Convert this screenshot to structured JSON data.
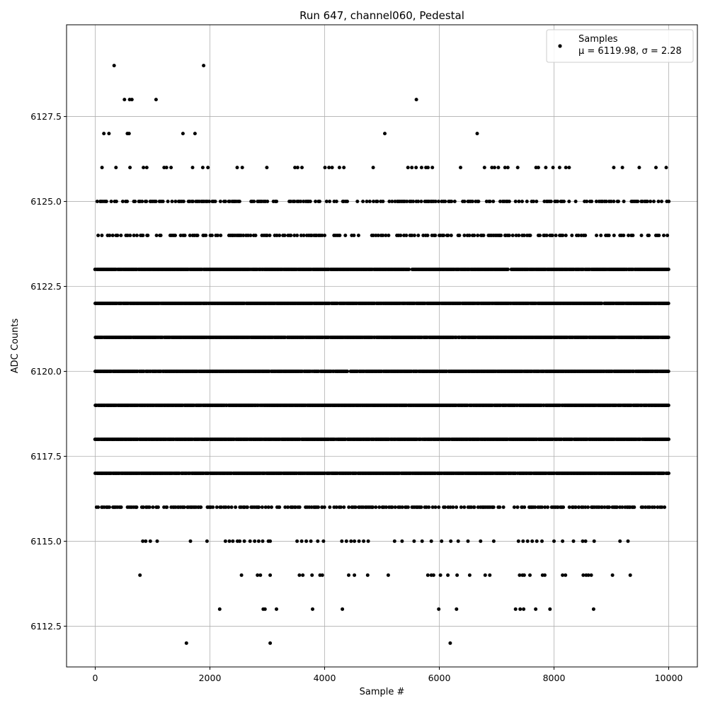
{
  "chart_data": {
    "type": "scatter",
    "title": "Run 647, channel060, Pedestal",
    "xlabel": "Sample #",
    "ylabel": "ADC Counts",
    "xlim": [
      -500,
      10500
    ],
    "ylim": [
      6111.3,
      6130.2
    ],
    "xticks": [
      0,
      2000,
      4000,
      6000,
      8000,
      10000
    ],
    "xtick_labels": [
      "0",
      "2000",
      "4000",
      "6000",
      "8000",
      "10000"
    ],
    "yticks": [
      6112.5,
      6115.0,
      6117.5,
      6120.0,
      6122.5,
      6125.0,
      6127.5
    ],
    "ytick_labels": [
      "6112.5",
      "6115.0",
      "6117.5",
      "6120.0",
      "6122.5",
      "6125.0",
      "6127.5"
    ],
    "grid": true,
    "legend_position": "top-right",
    "legend": {
      "series_name": "Samples",
      "stats_label": "μ = 6119.98, σ = 2.28"
    },
    "marker_color": "#000000",
    "n_samples": 10000,
    "series": [
      {
        "name": "Samples",
        "levels": [
          6112,
          6113,
          6114,
          6115,
          6116,
          6117,
          6118,
          6119,
          6120,
          6121,
          6122,
          6123,
          6124,
          6125,
          6126,
          6127,
          6128,
          6129
        ],
        "points": [
          [
            330,
            6129
          ],
          [
            1890,
            6129
          ],
          [
            510,
            6128
          ],
          [
            600,
            6128
          ],
          [
            640,
            6128
          ],
          [
            1060,
            6128
          ],
          [
            5600,
            6128
          ],
          [
            150,
            6127
          ],
          [
            240,
            6127
          ],
          [
            560,
            6127
          ],
          [
            590,
            6127
          ],
          [
            1530,
            6127
          ],
          [
            1740,
            6127
          ],
          [
            5050,
            6127
          ],
          [
            6660,
            6127
          ],
          [
            1590,
            6112
          ],
          [
            3050,
            6112
          ],
          [
            6190,
            6112
          ],
          [
            2170,
            6113
          ],
          [
            2930,
            6113
          ],
          [
            2960,
            6113
          ],
          [
            3160,
            6113
          ],
          [
            3790,
            6113
          ],
          [
            4310,
            6113
          ],
          [
            5990,
            6113
          ],
          [
            6300,
            6113
          ],
          [
            7330,
            6113
          ],
          [
            7410,
            6113
          ],
          [
            7470,
            6113
          ],
          [
            7680,
            6113
          ],
          [
            7930,
            6113
          ],
          [
            8690,
            6113
          ],
          [
            780,
            6114
          ],
          [
            2550,
            6114
          ],
          [
            2830,
            6114
          ],
          [
            2880,
            6114
          ],
          [
            3050,
            6114
          ],
          [
            3560,
            6114
          ],
          [
            3620,
            6114
          ],
          [
            3780,
            6114
          ],
          [
            3920,
            6114
          ],
          [
            3960,
            6114
          ],
          [
            4420,
            6114
          ],
          [
            4520,
            6114
          ],
          [
            4750,
            6114
          ],
          [
            5110,
            6114
          ],
          [
            5800,
            6114
          ],
          [
            5860,
            6114
          ],
          [
            5900,
            6114
          ],
          [
            6020,
            6114
          ],
          [
            6150,
            6114
          ],
          [
            6310,
            6114
          ],
          [
            6530,
            6114
          ],
          [
            6800,
            6114
          ],
          [
            6880,
            6114
          ],
          [
            7400,
            6114
          ],
          [
            7450,
            6114
          ],
          [
            7480,
            6114
          ],
          [
            7580,
            6114
          ],
          [
            7800,
            6114
          ],
          [
            7840,
            6114
          ],
          [
            8150,
            6114
          ],
          [
            8200,
            6114
          ],
          [
            8510,
            6114
          ],
          [
            8560,
            6114
          ],
          [
            8600,
            6114
          ],
          [
            8650,
            6114
          ],
          [
            9020,
            6114
          ],
          [
            9330,
            6114
          ],
          [
            830,
            6115
          ],
          [
            880,
            6115
          ],
          [
            960,
            6115
          ],
          [
            1080,
            6115
          ],
          [
            1660,
            6115
          ],
          [
            1950,
            6115
          ],
          [
            2270,
            6115
          ],
          [
            2340,
            6115
          ],
          [
            2400,
            6115
          ],
          [
            2480,
            6115
          ],
          [
            2520,
            6115
          ],
          [
            2600,
            6115
          ],
          [
            2700,
            6115
          ],
          [
            2780,
            6115
          ],
          [
            2850,
            6115
          ],
          [
            2920,
            6115
          ],
          [
            3020,
            6115
          ],
          [
            3050,
            6115
          ],
          [
            3520,
            6115
          ],
          [
            3600,
            6115
          ],
          [
            3680,
            6115
          ],
          [
            3760,
            6115
          ],
          [
            3880,
            6115
          ],
          [
            3980,
            6115
          ],
          [
            4300,
            6115
          ],
          [
            4380,
            6115
          ],
          [
            4460,
            6115
          ],
          [
            4520,
            6115
          ],
          [
            4600,
            6115
          ],
          [
            4680,
            6115
          ],
          [
            4760,
            6115
          ],
          [
            5220,
            6115
          ],
          [
            5350,
            6115
          ],
          [
            5560,
            6115
          ],
          [
            5700,
            6115
          ],
          [
            5860,
            6115
          ],
          [
            6040,
            6115
          ],
          [
            6200,
            6115
          ],
          [
            6330,
            6115
          ],
          [
            6500,
            6115
          ],
          [
            6720,
            6115
          ],
          [
            6950,
            6115
          ],
          [
            7380,
            6115
          ],
          [
            7460,
            6115
          ],
          [
            7540,
            6115
          ],
          [
            7620,
            6115
          ],
          [
            7700,
            6115
          ],
          [
            7790,
            6115
          ],
          [
            8000,
            6115
          ],
          [
            8150,
            6115
          ],
          [
            8340,
            6115
          ],
          [
            8500,
            6115
          ],
          [
            8550,
            6115
          ],
          [
            8700,
            6115
          ],
          [
            9150,
            6115
          ],
          [
            9290,
            6115
          ]
        ],
        "dense_band_levels": [
          6117,
          6118,
          6119,
          6120,
          6121,
          6122,
          6123
        ],
        "medium_band_levels": [
          6116,
          6124,
          6125
        ],
        "sparse_band_levels": [
          6126
        ]
      }
    ]
  }
}
